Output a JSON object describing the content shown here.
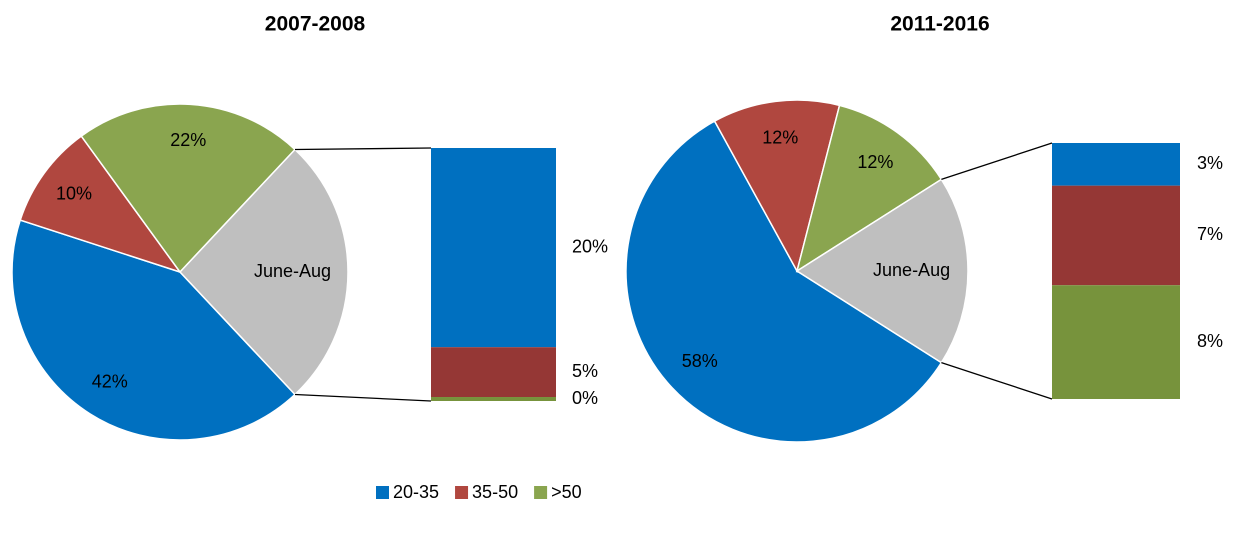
{
  "legend": {
    "names": [
      "20-35",
      "35-50",
      ">50"
    ],
    "colors": [
      "#0070c0",
      "#b0473f",
      "#8aa54f"
    ]
  },
  "chart_data": [
    {
      "type": "pie",
      "title": "2007-2008",
      "values": [
        42,
        10,
        22
      ],
      "value_labels": [
        "42%",
        "10%",
        "22%"
      ],
      "colors": [
        "#0070c0",
        "#b0473f",
        "#8aa54f"
      ],
      "rest": {
        "label": "June-Aug",
        "value": 26,
        "color": "#bfbfbf",
        "values": [
          20,
          5,
          0.4
        ],
        "value_labels": [
          "20%",
          "5%",
          "0%"
        ],
        "colors": [
          "#0070c0",
          "#953735",
          "#77933c"
        ]
      }
    },
    {
      "type": "pie",
      "title": "2011-2016",
      "values": [
        58,
        12,
        12
      ],
      "value_labels": [
        "58%",
        "12%",
        "12%"
      ],
      "colors": [
        "#0070c0",
        "#b0473f",
        "#8aa54f"
      ],
      "rest": {
        "label": "June-Aug",
        "value": 18,
        "color": "#bfbfbf",
        "values": [
          3,
          7,
          8
        ],
        "value_labels": [
          "3%",
          "7%",
          "8%"
        ],
        "colors": [
          "#0070c0",
          "#953735",
          "#77933c"
        ]
      }
    }
  ]
}
